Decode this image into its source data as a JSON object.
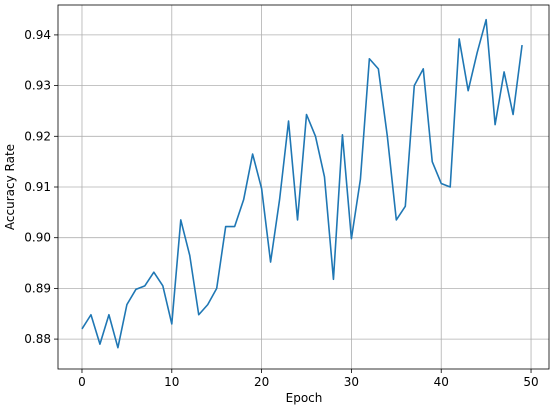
{
  "chart_data": {
    "type": "line",
    "xlabel": "Epoch",
    "ylabel": "Accuracy Rate",
    "x": [
      0,
      1,
      2,
      3,
      4,
      5,
      6,
      7,
      8,
      9,
      10,
      11,
      12,
      13,
      14,
      15,
      16,
      17,
      18,
      19,
      20,
      21,
      22,
      23,
      24,
      25,
      26,
      27,
      28,
      29,
      30,
      31,
      32,
      33,
      34,
      35,
      36,
      37,
      38,
      39,
      40,
      41,
      42,
      43,
      44,
      45,
      46,
      47,
      48,
      49
    ],
    "series": [
      {
        "color": "#1f77b4",
        "values": [
          0.882,
          0.8848,
          0.879,
          0.8848,
          0.8783,
          0.8868,
          0.8898,
          0.8905,
          0.8932,
          0.8905,
          0.883,
          0.9035,
          0.8965,
          0.8848,
          0.8868,
          0.89,
          0.9022,
          0.9022,
          0.9075,
          0.9165,
          0.9097,
          0.8952,
          0.9075,
          0.923,
          0.9035,
          0.9243,
          0.92,
          0.912,
          0.8918,
          0.9203,
          0.8998,
          0.9115,
          0.9353,
          0.9333,
          0.92,
          0.9035,
          0.9062,
          0.93,
          0.9333,
          0.915,
          0.9107,
          0.91,
          0.9392,
          0.929,
          0.9365,
          0.943,
          0.9223,
          0.9327,
          0.9243,
          0.938
        ]
      }
    ],
    "xlim": [
      -2.67,
      52.0
    ],
    "ylim": [
      0.8741,
      0.9459
    ],
    "xticks": [
      0,
      10,
      20,
      30,
      40,
      50
    ],
    "yticks": [
      0.88,
      0.89,
      {
        "value": 0.9,
        "label": "0.90"
      },
      0.91,
      0.92,
      0.93,
      0.94
    ],
    "grid": true
  }
}
